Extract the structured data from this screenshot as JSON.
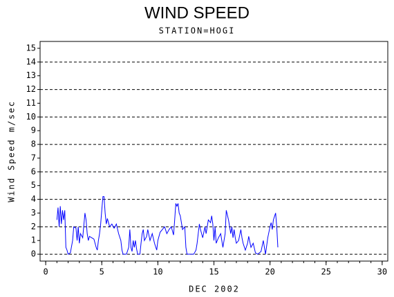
{
  "chart_data": {
    "type": "line",
    "title": "WIND SPEED",
    "subtitle": "STATION=HOGI",
    "x_label": "DEC 2002",
    "y_label": "Wind Speed m/sec",
    "color": "#0000ff",
    "xlim": [
      -0.5,
      30.5
    ],
    "xticks": [
      0,
      5,
      10,
      15,
      20,
      25,
      30
    ],
    "xminorticks": [
      0,
      1,
      2,
      3,
      4,
      5,
      6,
      7,
      8,
      9,
      10,
      11,
      12,
      13,
      14,
      15,
      16,
      17,
      18,
      19,
      20,
      21,
      22,
      23,
      24,
      25,
      26,
      27,
      28,
      29,
      30
    ],
    "ylim": [
      -0.5,
      15.5
    ],
    "yticks": [
      0,
      1,
      2,
      3,
      4,
      5,
      6,
      7,
      8,
      9,
      10,
      11,
      12,
      13,
      14,
      15
    ],
    "gridlines": [
      0,
      2,
      4,
      6,
      8,
      10,
      12,
      14
    ],
    "x": [
      1.0,
      1.1,
      1.2,
      1.3,
      1.4,
      1.5,
      1.6,
      1.7,
      1.8,
      1.9,
      2.0,
      2.2,
      2.4,
      2.5,
      2.7,
      2.8,
      2.9,
      3.0,
      3.1,
      3.3,
      3.5,
      3.6,
      3.7,
      3.8,
      3.9,
      4.1,
      4.3,
      4.5,
      4.6,
      4.7,
      4.8,
      4.9,
      5.0,
      5.1,
      5.2,
      5.3,
      5.4,
      5.5,
      5.7,
      5.9,
      6.1,
      6.3,
      6.5,
      6.7,
      6.8,
      6.9,
      7.2,
      7.4,
      7.5,
      7.6,
      7.7,
      7.8,
      7.9,
      8.0,
      8.1,
      8.2,
      8.4,
      8.5,
      8.6,
      8.7,
      8.8,
      9.0,
      9.1,
      9.3,
      9.5,
      9.7,
      9.9,
      10.0,
      10.2,
      10.4,
      10.6,
      10.8,
      11.0,
      11.2,
      11.4,
      11.5,
      11.6,
      11.7,
      11.8,
      11.9,
      12.0,
      12.2,
      12.4,
      12.5,
      12.6,
      13.2,
      13.4,
      13.5,
      13.6,
      13.7,
      13.8,
      14.0,
      14.2,
      14.3,
      14.5,
      14.7,
      14.8,
      14.9,
      15.0,
      15.1,
      15.2,
      15.4,
      15.6,
      15.8,
      16.0,
      16.1,
      16.3,
      16.5,
      16.6,
      16.7,
      16.8,
      16.9,
      17.0,
      17.2,
      17.4,
      17.5,
      17.6,
      17.8,
      18.0,
      18.1,
      18.3,
      18.5,
      18.7,
      18.9,
      19.2,
      19.4,
      19.5,
      19.6,
      19.8,
      20.0,
      20.1,
      20.2,
      20.3,
      20.5,
      20.6,
      20.7
    ],
    "values": [
      2.5,
      3.4,
      2.0,
      3.5,
      2.2,
      3.2,
      2.5,
      3.2,
      0.5,
      0.3,
      0,
      0.1,
      1.0,
      2.0,
      1.9,
      1.0,
      2.0,
      0.8,
      1.5,
      1.2,
      3.0,
      2.5,
      1.5,
      1.0,
      1.3,
      1.2,
      1.1,
      0.5,
      0.3,
      1.0,
      1.5,
      2.2,
      3.2,
      4.2,
      4.2,
      3.0,
      2.2,
      2.6,
      2.0,
      2.2,
      1.9,
      2.2,
      1.5,
      1.0,
      0.3,
      0,
      0,
      0.5,
      1.8,
      0.5,
      0.2,
      1.0,
      0.5,
      1.0,
      0.4,
      0,
      0,
      0.8,
      1.5,
      1.8,
      1.0,
      1.3,
      1.8,
      1.0,
      1.5,
      0.8,
      0.3,
      1.0,
      1.6,
      1.8,
      2.0,
      1.5,
      1.8,
      2.0,
      1.4,
      2.5,
      3.7,
      3.5,
      3.7,
      3.0,
      2.8,
      1.8,
      2.0,
      0.5,
      0,
      0,
      0.3,
      0.8,
      1.5,
      2.2,
      1.8,
      1.2,
      2.0,
      1.5,
      2.5,
      2.3,
      2.8,
      2.2,
      1.0,
      2.0,
      0.8,
      1.2,
      1.5,
      0.5,
      1.5,
      3.2,
      2.5,
      1.5,
      2.0,
      1.2,
      1.8,
      1.2,
      0.8,
      1.0,
      1.8,
      1.2,
      0.8,
      0.3,
      0.8,
      1.3,
      0.5,
      0.8,
      0.1,
      0,
      0.2,
      1.0,
      0.5,
      0,
      1.2,
      2.0,
      2.3,
      1.8,
      2.5,
      3.0,
      2.0,
      0.5
    ]
  }
}
